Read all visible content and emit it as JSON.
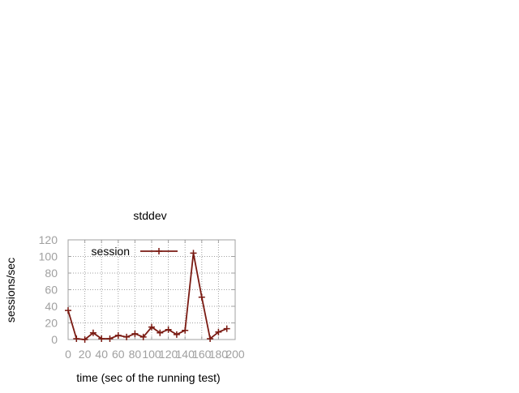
{
  "chart_data": {
    "type": "line",
    "title": "stddev",
    "xlabel": "time (sec of the running test)",
    "ylabel": "sessions/sec",
    "xlim": [
      0,
      200
    ],
    "ylim": [
      0,
      120
    ],
    "x_ticks": [
      0,
      20,
      40,
      60,
      80,
      100,
      120,
      140,
      160,
      180,
      200
    ],
    "y_ticks": [
      0,
      20,
      40,
      60,
      80,
      100,
      120
    ],
    "grid": true,
    "legend_position": "top-left",
    "series": [
      {
        "name": "session",
        "color": "#7a1a12",
        "marker": "plus",
        "x": [
          0,
          10,
          20,
          30,
          40,
          50,
          60,
          70,
          80,
          90,
          100,
          110,
          120,
          130,
          140,
          150,
          160,
          170,
          180,
          190
        ],
        "y": [
          35,
          1,
          0,
          8,
          1,
          1,
          5,
          3,
          7,
          3,
          15,
          8,
          12,
          6,
          11,
          104,
          51,
          1,
          9,
          13
        ]
      }
    ]
  }
}
